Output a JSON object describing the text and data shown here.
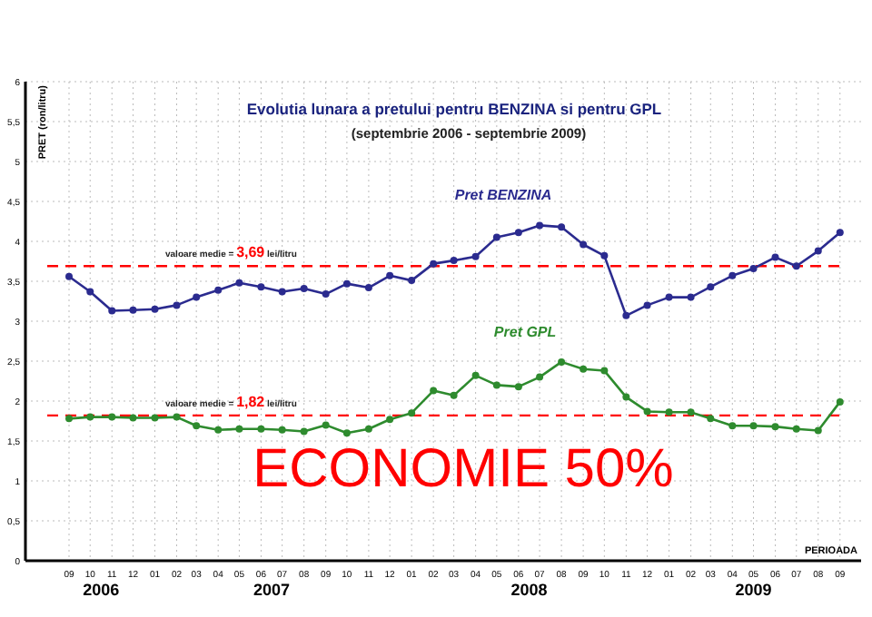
{
  "chart_data": {
    "type": "line",
    "title": "Evolutia lunara a pretului pentru BENZINA si pentru GPL",
    "subtitle": "(septembrie 2006 - septembrie 2009)",
    "xlabel": "PERIOADA",
    "ylabel": "PRET (ron/litru)",
    "x": [
      "2006-09",
      "2006-10",
      "2006-11",
      "2006-12",
      "2007-01",
      "2007-02",
      "2007-03",
      "2007-04",
      "2007-05",
      "2007-06",
      "2007-07",
      "2007-08",
      "2007-09",
      "2007-10",
      "2007-11",
      "2007-12",
      "2008-01",
      "2008-02",
      "2008-03",
      "2008-04",
      "2008-05",
      "2008-06",
      "2008-07",
      "2008-08",
      "2008-09",
      "2008-10",
      "2008-11",
      "2008-12",
      "2009-01",
      "2009-02",
      "2009-03",
      "2009-04",
      "2009-05",
      "2009-06",
      "2009-07",
      "2009-08",
      "2009-09"
    ],
    "series": [
      {
        "name": "Pret BENZINA",
        "color": "#2b2b8f",
        "values": [
          3.56,
          3.37,
          3.13,
          3.14,
          3.15,
          3.2,
          3.3,
          3.39,
          3.48,
          3.43,
          3.37,
          3.41,
          3.34,
          3.47,
          3.42,
          3.57,
          3.51,
          3.72,
          3.76,
          3.81,
          4.05,
          4.11,
          4.2,
          4.18,
          3.96,
          3.82,
          3.07,
          3.2,
          3.3,
          3.3,
          3.43,
          3.57,
          3.66,
          3.8,
          3.69,
          3.88,
          4.11
        ]
      },
      {
        "name": "Pret GPL",
        "color": "#2e8b2e",
        "values": [
          1.78,
          1.8,
          1.8,
          1.79,
          1.79,
          1.8,
          1.69,
          1.64,
          1.65,
          1.65,
          1.64,
          1.62,
          1.7,
          1.6,
          1.65,
          1.77,
          1.85,
          2.13,
          2.07,
          2.32,
          2.2,
          2.18,
          2.3,
          2.49,
          2.4,
          2.38,
          2.05,
          1.87,
          1.86,
          1.86,
          1.78,
          1.69,
          1.69,
          1.68,
          1.65,
          1.63,
          1.99
        ]
      }
    ],
    "xlim": [
      "2006-08",
      "2009-10"
    ],
    "xticks": [
      {
        "value": "2006-09",
        "label": "09"
      },
      {
        "value": "2006-10",
        "label": "10"
      },
      {
        "value": "2006-11",
        "label": "11"
      },
      {
        "value": "2006-12",
        "label": "12"
      },
      {
        "value": "2007-01",
        "label": "01"
      },
      {
        "value": "2007-02",
        "label": "02"
      },
      {
        "value": "2007-03",
        "label": "03"
      },
      {
        "value": "2007-04",
        "label": "04"
      },
      {
        "value": "2007-05",
        "label": "05"
      },
      {
        "value": "2007-06",
        "label": "06"
      },
      {
        "value": "2007-07",
        "label": "07"
      },
      {
        "value": "2007-08",
        "label": "08"
      },
      {
        "value": "2007-09",
        "label": "09"
      },
      {
        "value": "2007-10",
        "label": "10"
      },
      {
        "value": "2007-11",
        "label": "11"
      },
      {
        "value": "2007-12",
        "label": "12"
      },
      {
        "value": "2008-01",
        "label": "01"
      },
      {
        "value": "2008-02",
        "label": "02"
      },
      {
        "value": "2008-03",
        "label": "03"
      },
      {
        "value": "2008-04",
        "label": "04"
      },
      {
        "value": "2008-05",
        "label": "05"
      },
      {
        "value": "2008-06",
        "label": "06"
      },
      {
        "value": "2008-07",
        "label": "07"
      },
      {
        "value": "2008-08",
        "label": "08"
      },
      {
        "value": "2008-09",
        "label": "09"
      },
      {
        "value": "2008-10",
        "label": "10"
      },
      {
        "value": "2008-11",
        "label": "11"
      },
      {
        "value": "2008-12",
        "label": "12"
      },
      {
        "value": "2009-01",
        "label": "01"
      },
      {
        "value": "2009-02",
        "label": "02"
      },
      {
        "value": "2009-03",
        "label": "03"
      },
      {
        "value": "2009-04",
        "label": "04"
      },
      {
        "value": "2009-05",
        "label": "05"
      },
      {
        "value": "2009-06",
        "label": "06"
      },
      {
        "value": "2009-07",
        "label": "07"
      },
      {
        "value": "2009-08",
        "label": "08"
      },
      {
        "value": "2009-09",
        "label": "09"
      }
    ],
    "ylim": [
      0,
      6
    ],
    "yticks": [
      0,
      {
        "value": 0.5,
        "label": "0,5"
      },
      1,
      {
        "value": 1.5,
        "label": "1,5"
      },
      2,
      {
        "value": 2.5,
        "label": "2,5"
      },
      3,
      {
        "value": 3.5,
        "label": "3,5"
      },
      4,
      {
        "value": 4.5,
        "label": "4,5"
      },
      5,
      {
        "value": 5.5,
        "label": "5,5"
      },
      6
    ],
    "grid": true,
    "marker": "circle",
    "ref_lines": [
      {
        "axis": "y",
        "value": 3.69,
        "label": "valoare medie = 3,69 lei/litru",
        "color": "#ff0000",
        "line_style": "dashed"
      },
      {
        "axis": "y",
        "value": 1.82,
        "label": "valoare medie = 1,82 lei/litru",
        "color": "#ff0000",
        "line_style": "dashed"
      }
    ],
    "annotations": [
      "ECONOMIE 50%",
      "2006",
      "2007",
      "2008",
      "2009"
    ]
  }
}
